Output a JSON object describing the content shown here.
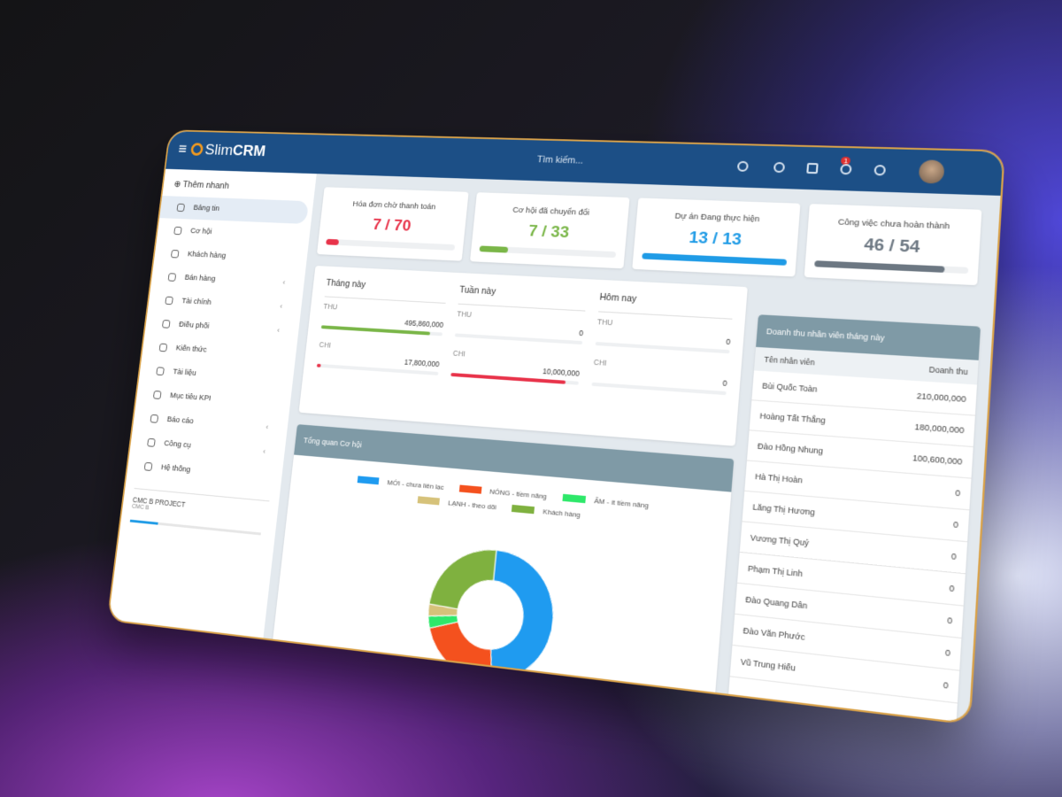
{
  "header": {
    "logo_light": "Slim",
    "logo_bold": "CRM",
    "search_placeholder": "Tìm kiếm...",
    "notification_badge": "1"
  },
  "sidebar": {
    "quick_add": "Thêm nhanh",
    "menu": [
      {
        "label": "Bảng tin",
        "active": true
      },
      {
        "label": "Cơ hội"
      },
      {
        "label": "Khách hàng"
      },
      {
        "label": "Bán hàng",
        "submenu": true
      },
      {
        "label": "Tài chính",
        "submenu": true
      },
      {
        "label": "Điều phối",
        "submenu": true
      },
      {
        "label": "Kiến thức"
      },
      {
        "label": "Tài liệu"
      },
      {
        "label": "Mục tiêu KPI"
      },
      {
        "label": "Báo cáo",
        "submenu": true
      },
      {
        "label": "Công cụ",
        "submenu": true
      },
      {
        "label": "Hệ thống"
      }
    ],
    "project": {
      "name": "CMC B PROJECT",
      "code": "CMC B",
      "progress": 22
    }
  },
  "stat_cards": [
    {
      "title": "Hóa đơn chờ thanh toán",
      "value": "7 / 70",
      "progress": 10,
      "color": "#e8334a"
    },
    {
      "title": "Cơ hội đã chuyển đổi",
      "value": "7 / 33",
      "progress": 21,
      "color": "#7ab648"
    },
    {
      "title": "Dự án Đang thực hiện",
      "value": "13 / 13",
      "progress": 100,
      "color": "#1f9be6"
    },
    {
      "title": "Công việc chưa hoàn thành",
      "value": "46 / 54",
      "progress": 85,
      "color": "#6c7782"
    }
  ],
  "finance": [
    {
      "title": "Tháng này",
      "rows": [
        {
          "label": "THU",
          "value": "495,860,000",
          "progress": 90,
          "color": "#7ab648"
        },
        {
          "label": "CHI",
          "value": "17,800,000",
          "progress": 3,
          "color": "#e8334a"
        }
      ]
    },
    {
      "title": "Tuần này",
      "rows": [
        {
          "label": "THU",
          "value": "0",
          "progress": 0,
          "color": "#7ab648"
        },
        {
          "label": "CHI",
          "value": "10,000,000",
          "progress": 90,
          "color": "#e8334a"
        }
      ]
    },
    {
      "title": "Hôm nay",
      "rows": [
        {
          "label": "THU",
          "value": "0",
          "progress": 0,
          "color": "#7ab648"
        },
        {
          "label": "CHI",
          "value": "0",
          "progress": 0,
          "color": "#e8334a"
        }
      ]
    }
  ],
  "opportunity_chart": {
    "type": "pie",
    "title": "Tổng quan Cơ hội",
    "series": [
      {
        "name": "MỚI - chưa liên lạc",
        "color": "#1f9bf0",
        "value": 48
      },
      {
        "name": "NÓNG - tiềm năng",
        "color": "#f4511e",
        "value": 22
      },
      {
        "name": "ẤM - ít tiềm năng",
        "color": "#2ee86a",
        "value": 3
      },
      {
        "name": "LẠNH - theo dõi",
        "color": "#d6c27a",
        "value": 3
      },
      {
        "name": "Khách hàng",
        "color": "#7fb13f",
        "value": 24
      }
    ]
  },
  "revenue_table": {
    "title": "Doanh thu nhân viên tháng này",
    "columns": [
      "Tên nhân viên",
      "Doanh thu"
    ],
    "rows": [
      [
        "Bùi Quốc Toàn",
        "210,000,000"
      ],
      [
        "Hoàng Tất Thắng",
        "180,000,000"
      ],
      [
        "Đào Hồng Nhung",
        "100,600,000"
      ],
      [
        "Hà Thị Hoàn",
        "0"
      ],
      [
        "Lăng Thị Hương",
        "0"
      ],
      [
        "Vương Thị Quý",
        "0"
      ],
      [
        "Phạm Thị Linh",
        "0"
      ],
      [
        "Đào Quang Dân",
        "0"
      ],
      [
        "Đào Văn Phước",
        "0"
      ],
      [
        "Vũ Trung Hiếu",
        "0"
      ]
    ]
  }
}
